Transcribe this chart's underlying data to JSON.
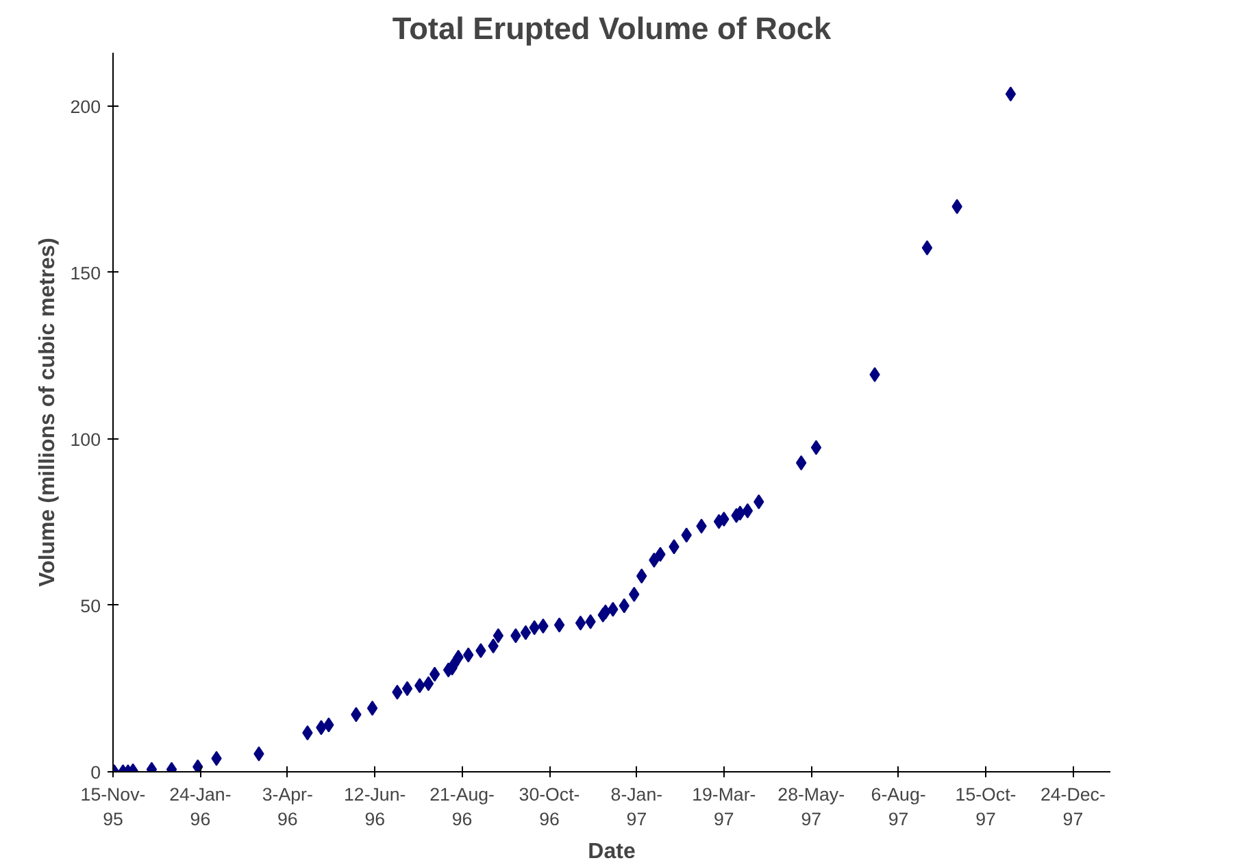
{
  "chart_data": {
    "type": "scatter",
    "title": "Total Erupted Volume of Rock",
    "xlabel": "Date",
    "ylabel": "Volume (millions of cubic metres)",
    "x": [
      "1995-11-16",
      "1995-11-23",
      "1995-11-27",
      "1995-12-01",
      "1995-12-16",
      "1996-01-01",
      "1996-01-22",
      "1996-02-06",
      "1996-03-11",
      "1996-04-19",
      "1996-04-30",
      "1996-05-06",
      "1996-05-28",
      "1996-06-10",
      "1996-06-30",
      "1996-07-08",
      "1996-07-18",
      "1996-07-25",
      "1996-07-30",
      "1996-08-10",
      "1996-08-13",
      "1996-08-15",
      "1996-08-18",
      "1996-08-26",
      "1996-09-05",
      "1996-09-15",
      "1996-09-19",
      "1996-10-03",
      "1996-10-11",
      "1996-10-18",
      "1996-10-25",
      "1996-11-07",
      "1996-11-24",
      "1996-12-02",
      "1996-12-12",
      "1996-12-14",
      "1996-12-20",
      "1996-12-29",
      "1997-01-06",
      "1997-01-12",
      "1997-01-22",
      "1997-01-27",
      "1997-02-07",
      "1997-02-17",
      "1997-03-01",
      "1997-03-15",
      "1997-03-19",
      "1997-03-29",
      "1997-04-01",
      "1997-04-07",
      "1997-04-16",
      "1997-05-20",
      "1997-06-01",
      "1997-07-18",
      "1997-08-29",
      "1997-09-22",
      "1997-11-04"
    ],
    "values": [
      0,
      0,
      0,
      0.3,
      0.7,
      0.7,
      1.5,
      4,
      5.4,
      11.7,
      13.3,
      14.1,
      17.2,
      19.1,
      23.9,
      25,
      25.9,
      26.5,
      29.3,
      30.6,
      31.2,
      32.6,
      34.4,
      35.1,
      36.4,
      37.8,
      40.9,
      40.9,
      41.8,
      43.3,
      43.8,
      44.1,
      44.7,
      45.1,
      47.1,
      48,
      48.8,
      49.9,
      53.3,
      58.8,
      63.6,
      65.3,
      67.6,
      71.1,
      73.8,
      75.2,
      75.9,
      77,
      77.7,
      78.4,
      81.1,
      92.8,
      97.4,
      119.3,
      157.4,
      169.8,
      203.6
    ],
    "color": "#000080",
    "marker": "diamond",
    "grid": false,
    "xlim": [
      "1995-11-15",
      "1998-01-23"
    ],
    "xticks": [
      {
        "value": "1995-11-15",
        "label": "15-Nov-95"
      },
      {
        "value": "1996-01-24",
        "label": "24-Jan-96"
      },
      {
        "value": "1996-04-03",
        "label": "3-Apr-96"
      },
      {
        "value": "1996-06-12",
        "label": "12-Jun-96"
      },
      {
        "value": "1996-08-21",
        "label": "21-Aug-96"
      },
      {
        "value": "1996-10-30",
        "label": "30-Oct-96"
      },
      {
        "value": "1997-01-08",
        "label": "8-Jan-97"
      },
      {
        "value": "1997-03-19",
        "label": "19-Mar-97"
      },
      {
        "value": "1997-05-28",
        "label": "28-May-97"
      },
      {
        "value": "1997-08-06",
        "label": "6-Aug-97"
      },
      {
        "value": "1997-10-15",
        "label": "15-Oct-97"
      },
      {
        "value": "1997-12-24",
        "label": "24-Dec-97"
      }
    ],
    "ylim": [
      0,
      216
    ],
    "yticks": [
      0,
      50,
      100,
      150,
      200
    ]
  }
}
